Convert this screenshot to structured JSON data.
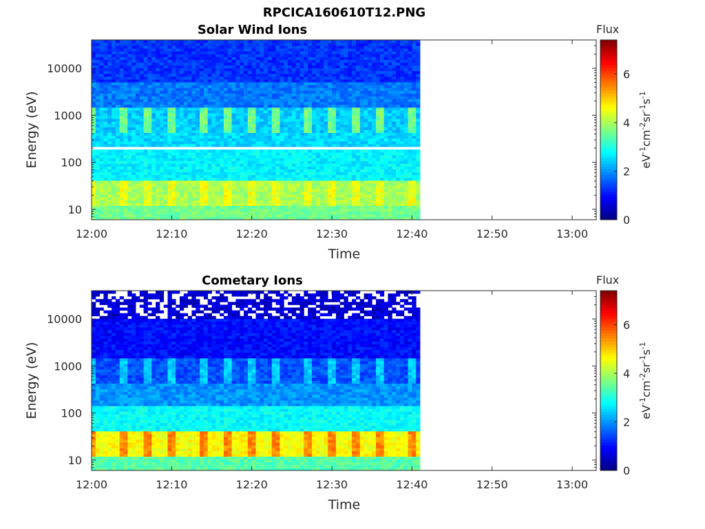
{
  "figure_title": "RPCICA160610T12.PNG",
  "chart_data": [
    {
      "type": "heatmap",
      "title": "Solar Wind Ions",
      "xlabel": "Time",
      "ylabel": "Energy (eV)",
      "x_ticks": [
        "12:00",
        "12:10",
        "12:20",
        "12:30",
        "12:40",
        "12:50",
        "13:00"
      ],
      "x_range": [
        "12:00",
        "13:03"
      ],
      "data_end": "12:41",
      "y_scale": "log",
      "y_ticks": [
        "10",
        "100",
        "1000",
        "10000"
      ],
      "y_range": [
        6,
        40000
      ],
      "gap_energy_eV": 200,
      "colorbar": {
        "label": "Flux",
        "unit": "eV-1cm-2sr-1s-1",
        "ticks": [
          "0",
          "2",
          "4",
          "6"
        ],
        "range": [
          0,
          7.4
        ],
        "colormap": "jet"
      },
      "bands": [
        {
          "energy_eV": [
            6,
            12
          ],
          "flux": 3.6
        },
        {
          "energy_eV": [
            12,
            40
          ],
          "flux": 4.0,
          "pulse_peak": 4.8
        },
        {
          "energy_eV": [
            40,
            200
          ],
          "flux": 2.7
        },
        {
          "energy_eV": [
            200,
            450
          ],
          "flux": 2.5
        },
        {
          "energy_eV": [
            450,
            1500
          ],
          "flux": 2.4,
          "pulse_peak": 4.3
        },
        {
          "energy_eV": [
            1500,
            5000
          ],
          "flux": 1.8
        },
        {
          "energy_eV": [
            5000,
            40000
          ],
          "flux": 1.3
        }
      ],
      "pulse_times": [
        "12:00",
        "12:04",
        "12:07",
        "12:10",
        "12:14",
        "12:17",
        "12:20",
        "12:23",
        "12:27",
        "12:30",
        "12:33",
        "12:36",
        "12:40"
      ]
    },
    {
      "type": "heatmap",
      "title": "Cometary Ions",
      "xlabel": "Time",
      "ylabel": "Energy (eV)",
      "x_ticks": [
        "12:00",
        "12:10",
        "12:20",
        "12:30",
        "12:40",
        "12:50",
        "13:00"
      ],
      "x_range": [
        "12:00",
        "13:03"
      ],
      "data_end": "12:41",
      "y_scale": "log",
      "y_ticks": [
        "10",
        "100",
        "1000",
        "10000"
      ],
      "y_range": [
        6,
        40000
      ],
      "colorbar": {
        "label": "Flux",
        "unit": "eV-1cm-2sr-1s-1",
        "ticks": [
          "0",
          "2",
          "4",
          "6"
        ],
        "range": [
          0,
          7.4
        ],
        "colormap": "jet"
      },
      "bands": [
        {
          "energy_eV": [
            6,
            12
          ],
          "flux": 3.4
        },
        {
          "energy_eV": [
            12,
            40
          ],
          "flux": 4.6,
          "pulse_peak": 6.0
        },
        {
          "energy_eV": [
            40,
            150
          ],
          "flux": 2.8
        },
        {
          "energy_eV": [
            150,
            450
          ],
          "flux": 2.0
        },
        {
          "energy_eV": [
            450,
            1500
          ],
          "flux": 1.5,
          "pulse_peak": 2.9
        },
        {
          "energy_eV": [
            1500,
            10000
          ],
          "flux": 1.0
        },
        {
          "energy_eV": [
            10000,
            40000
          ],
          "flux": 0.6,
          "sparse": true
        }
      ],
      "pulse_times": [
        "12:00",
        "12:04",
        "12:07",
        "12:10",
        "12:14",
        "12:17",
        "12:20",
        "12:23",
        "12:27",
        "12:30",
        "12:33",
        "12:36",
        "12:40"
      ]
    }
  ]
}
